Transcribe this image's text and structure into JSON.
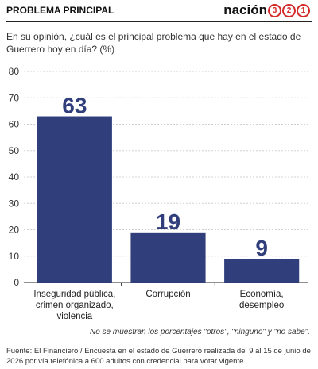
{
  "header": {
    "title": "PROBLEMA PRINCIPAL",
    "logo": "nación",
    "logo_digits": [
      "3",
      "2",
      "1"
    ]
  },
  "chart_data": {
    "type": "bar",
    "subtitle": "En su opinión, ¿cuál es el principal problema que hay en el estado de Guerrero hoy en día? (%)",
    "categories": [
      "Inseguridad pública, crimen organizado, violencia",
      "Corrupción",
      "Economía, desempleo"
    ],
    "values": [
      63,
      19,
      9
    ],
    "color": "#313e7c",
    "ylim": [
      0,
      80
    ],
    "yticks": [
      0,
      10,
      20,
      30,
      40,
      50,
      60,
      70,
      80
    ],
    "grid": true
  },
  "note": "No se muestran los porcentajes \"otros\", \"ninguno\" y \"no sabe\".",
  "source": "Fuente: El Financiero / Encuesta en el estado de Guerrero realizada del 9 al 15 de junio de 2026 por vía telefónica a 600 adultos con credencial para votar vigente."
}
